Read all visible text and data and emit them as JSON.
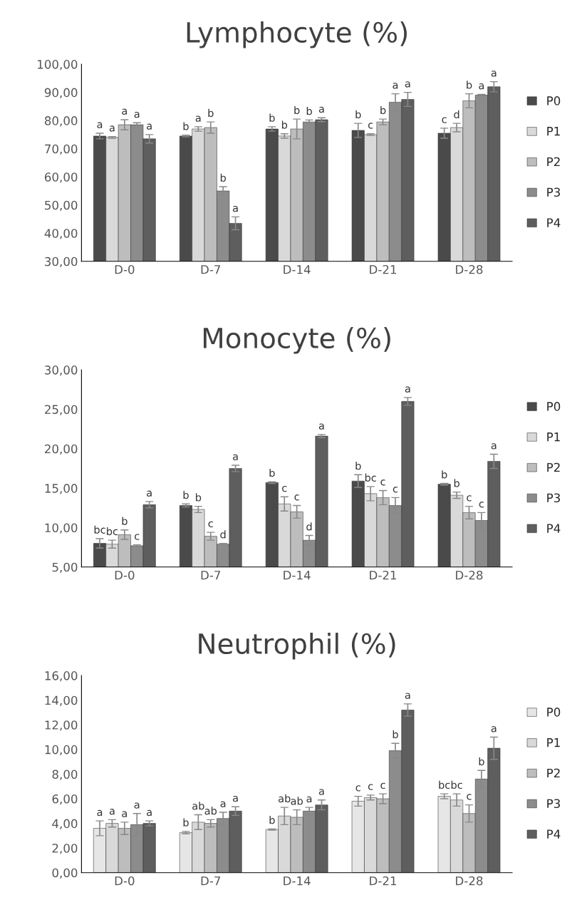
{
  "chart_data": [
    {
      "type": "bar",
      "title": "Lymphocyte (%)",
      "categories": [
        "D-0",
        "D-7",
        "D-14",
        "D-21",
        "D-28"
      ],
      "ylim": [
        30,
        100
      ],
      "yticks": [
        {
          "value": 30,
          "label": "30,00"
        },
        {
          "value": 40,
          "label": "40,00"
        },
        {
          "value": 50,
          "label": "50,00"
        },
        {
          "value": 60,
          "label": "60,00"
        },
        {
          "value": 70,
          "label": "70,00"
        },
        {
          "value": 80,
          "label": "80,00"
        },
        {
          "value": 90,
          "label": "90,00"
        },
        {
          "value": 100,
          "label": "100,00"
        }
      ],
      "legend": "right",
      "series": [
        {
          "name": "P0",
          "color": "#4a4a4a",
          "values": [
            74.5,
            74.5,
            77,
            76.5,
            75.5
          ],
          "errors": [
            1,
            0.3,
            0.8,
            2.5,
            1.8
          ],
          "value_labels": [
            "a",
            "b",
            "b",
            "b",
            "c"
          ]
        },
        {
          "name": "P1",
          "color": "#d9d9d9",
          "values": [
            74,
            77,
            74.5,
            75,
            77.5
          ],
          "errors": [
            0.3,
            0.8,
            0.8,
            0.3,
            1.5
          ],
          "value_labels": [
            "a",
            "a",
            "b",
            "c",
            "d"
          ]
        },
        {
          "name": "P2",
          "color": "#bdbdbd",
          "values": [
            78.5,
            77.5,
            77,
            79.5,
            87
          ],
          "errors": [
            1.8,
            2,
            3.5,
            1,
            2.5
          ],
          "value_labels": [
            "a",
            "b",
            "b",
            "b",
            "b"
          ]
        },
        {
          "name": "P3",
          "color": "#8c8c8c",
          "values": [
            78.5,
            55,
            79.5,
            86.5,
            89
          ],
          "errors": [
            0.7,
            1.5,
            0.7,
            3,
            0.3
          ],
          "value_labels": [
            "a",
            "b",
            "b",
            "a",
            "a"
          ]
        },
        {
          "name": "P4",
          "color": "#5e5e5e",
          "values": [
            73.5,
            43.5,
            80.3,
            87.5,
            92
          ],
          "errors": [
            1.5,
            2.3,
            0.7,
            2.5,
            1.8
          ],
          "value_labels": [
            "a",
            "a",
            "a",
            "a",
            "a"
          ]
        }
      ]
    },
    {
      "type": "bar",
      "title": "Monocyte (%)",
      "categories": [
        "D-0",
        "D-7",
        "D-14",
        "D-21",
        "D-28"
      ],
      "ylim": [
        5,
        30
      ],
      "yticks": [
        {
          "value": 5,
          "label": "5,00"
        },
        {
          "value": 10,
          "label": "10,00"
        },
        {
          "value": 15,
          "label": "15,00"
        },
        {
          "value": 20,
          "label": "20,00"
        },
        {
          "value": 25,
          "label": "25,00"
        },
        {
          "value": 30,
          "label": "30,00"
        }
      ],
      "legend": "right",
      "series": [
        {
          "name": "P0",
          "color": "#4a4a4a",
          "values": [
            8,
            12.8,
            15.7,
            15.9,
            15.5
          ],
          "errors": [
            0.6,
            0.2,
            0.1,
            0.8,
            0.1
          ],
          "value_labels": [
            "bc",
            "b",
            "b",
            "b",
            "b"
          ]
        },
        {
          "name": "P1",
          "color": "#d9d9d9",
          "values": [
            7.9,
            12.3,
            13,
            14.3,
            14.1
          ],
          "errors": [
            0.5,
            0.4,
            0.9,
            0.9,
            0.4
          ],
          "value_labels": [
            "bc",
            "b",
            "c",
            "bc",
            "b"
          ]
        },
        {
          "name": "P2",
          "color": "#bdbdbd",
          "values": [
            9.1,
            8.9,
            12,
            13.8,
            11.9
          ],
          "errors": [
            0.6,
            0.5,
            0.8,
            0.9,
            0.8
          ],
          "value_labels": [
            "b",
            "c",
            "c",
            "c",
            "c"
          ]
        },
        {
          "name": "P3",
          "color": "#8c8c8c",
          "values": [
            7.7,
            7.9,
            8.4,
            12.8,
            10.9
          ],
          "errors": [
            0.1,
            0.1,
            0.6,
            1,
            1
          ],
          "value_labels": [
            "c",
            "d",
            "d",
            "c",
            "c"
          ]
        },
        {
          "name": "P4",
          "color": "#5e5e5e",
          "values": [
            12.9,
            17.5,
            21.6,
            26,
            18.4
          ],
          "errors": [
            0.4,
            0.4,
            0.2,
            0.5,
            0.9
          ],
          "value_labels": [
            "a",
            "a",
            "a",
            "a",
            "a"
          ]
        }
      ]
    },
    {
      "type": "bar",
      "title": "Neutrophil (%)",
      "categories": [
        "D-0",
        "D-7",
        "D-14",
        "D-21",
        "D-28"
      ],
      "ylim": [
        0,
        16
      ],
      "yticks": [
        {
          "value": 0,
          "label": "0,00"
        },
        {
          "value": 2,
          "label": "2,00"
        },
        {
          "value": 4,
          "label": "4,00"
        },
        {
          "value": 6,
          "label": "6,00"
        },
        {
          "value": 8,
          "label": "8,00"
        },
        {
          "value": 10,
          "label": "10,00"
        },
        {
          "value": 12,
          "label": "12,00"
        },
        {
          "value": 14,
          "label": "14,00"
        },
        {
          "value": 16,
          "label": "16,00"
        }
      ],
      "legend": "right",
      "series": [
        {
          "name": "P0",
          "color": "#e6e6e6",
          "values": [
            3.6,
            3.25,
            3.5,
            5.8,
            6.2
          ],
          "errors": [
            0.6,
            0.1,
            0.05,
            0.4,
            0.2
          ],
          "value_labels": [
            "a",
            "b",
            "b",
            "c",
            "bc"
          ]
        },
        {
          "name": "P1",
          "color": "#d9d9d9",
          "values": [
            4,
            4.1,
            4.6,
            6.1,
            5.9
          ],
          "errors": [
            0.3,
            0.6,
            0.7,
            0.2,
            0.5
          ],
          "value_labels": [
            "a",
            "ab",
            "ab",
            "c",
            "bc"
          ]
        },
        {
          "name": "P2",
          "color": "#bdbdbd",
          "values": [
            3.6,
            4,
            4.5,
            6,
            4.8
          ],
          "errors": [
            0.5,
            0.3,
            0.6,
            0.4,
            0.7
          ],
          "value_labels": [
            "a",
            "ab",
            "ab",
            "c",
            "c"
          ]
        },
        {
          "name": "P3",
          "color": "#8c8c8c",
          "values": [
            3.9,
            4.4,
            5,
            9.9,
            7.6
          ],
          "errors": [
            0.9,
            0.5,
            0.3,
            0.6,
            0.7
          ],
          "value_labels": [
            "a",
            "a",
            "a",
            "b",
            "b"
          ]
        },
        {
          "name": "P4",
          "color": "#5e5e5e",
          "values": [
            4,
            5,
            5.5,
            13.2,
            10.1
          ],
          "errors": [
            0.2,
            0.35,
            0.4,
            0.5,
            0.9
          ],
          "value_labels": [
            "a",
            "a",
            "a",
            "a",
            "a"
          ]
        }
      ]
    }
  ]
}
